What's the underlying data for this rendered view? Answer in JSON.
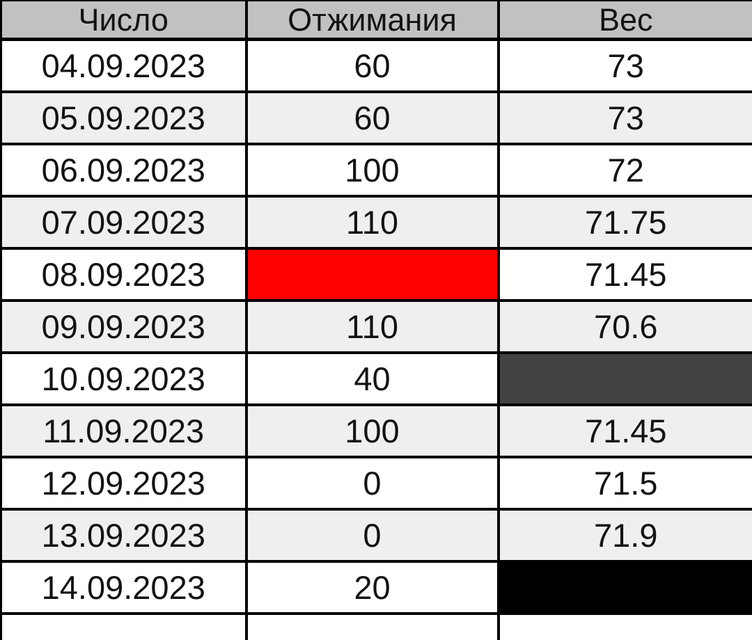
{
  "chart_data": {
    "type": "table",
    "title": "",
    "columns": [
      {
        "label": "Число"
      },
      {
        "label": "Отжимания"
      },
      {
        "label": "Вес"
      }
    ],
    "rows": [
      {
        "cells": [
          {
            "text": "04.09.2023"
          },
          {
            "text": "60"
          },
          {
            "text": "73"
          }
        ]
      },
      {
        "cells": [
          {
            "text": "05.09.2023"
          },
          {
            "text": "60"
          },
          {
            "text": "73"
          }
        ]
      },
      {
        "cells": [
          {
            "text": "06.09.2023"
          },
          {
            "text": "100"
          },
          {
            "text": "72"
          }
        ]
      },
      {
        "cells": [
          {
            "text": "07.09.2023"
          },
          {
            "text": "110"
          },
          {
            "text": "71.75"
          }
        ]
      },
      {
        "cells": [
          {
            "text": "08.09.2023"
          },
          {
            "text": "",
            "fill": "#ff0000"
          },
          {
            "text": "71.45"
          }
        ]
      },
      {
        "cells": [
          {
            "text": "09.09.2023"
          },
          {
            "text": "110"
          },
          {
            "text": "70.6"
          }
        ]
      },
      {
        "cells": [
          {
            "text": "10.09.2023"
          },
          {
            "text": "40"
          },
          {
            "text": "",
            "fill": "#424242"
          }
        ]
      },
      {
        "cells": [
          {
            "text": "11.09.2023"
          },
          {
            "text": "100"
          },
          {
            "text": "71.45"
          }
        ]
      },
      {
        "cells": [
          {
            "text": "12.09.2023"
          },
          {
            "text": "0"
          },
          {
            "text": "71.5"
          }
        ]
      },
      {
        "cells": [
          {
            "text": "13.09.2023"
          },
          {
            "text": "0"
          },
          {
            "text": "71.9"
          }
        ]
      },
      {
        "cells": [
          {
            "text": "14.09.2023"
          },
          {
            "text": "20"
          },
          {
            "text": "",
            "fill": "#000000"
          }
        ]
      }
    ],
    "colors": {
      "header_bg": "#c1c1c1",
      "row_even_bg": "#ffffff",
      "row_odd_bg": "#efefef",
      "border": "#000000",
      "highlight_red": "#ff0000",
      "highlight_dark_gray": "#424242",
      "highlight_black": "#000000"
    },
    "layout": {
      "legend": "none",
      "grid": "full black cell borders",
      "zebra_striping": true
    }
  }
}
